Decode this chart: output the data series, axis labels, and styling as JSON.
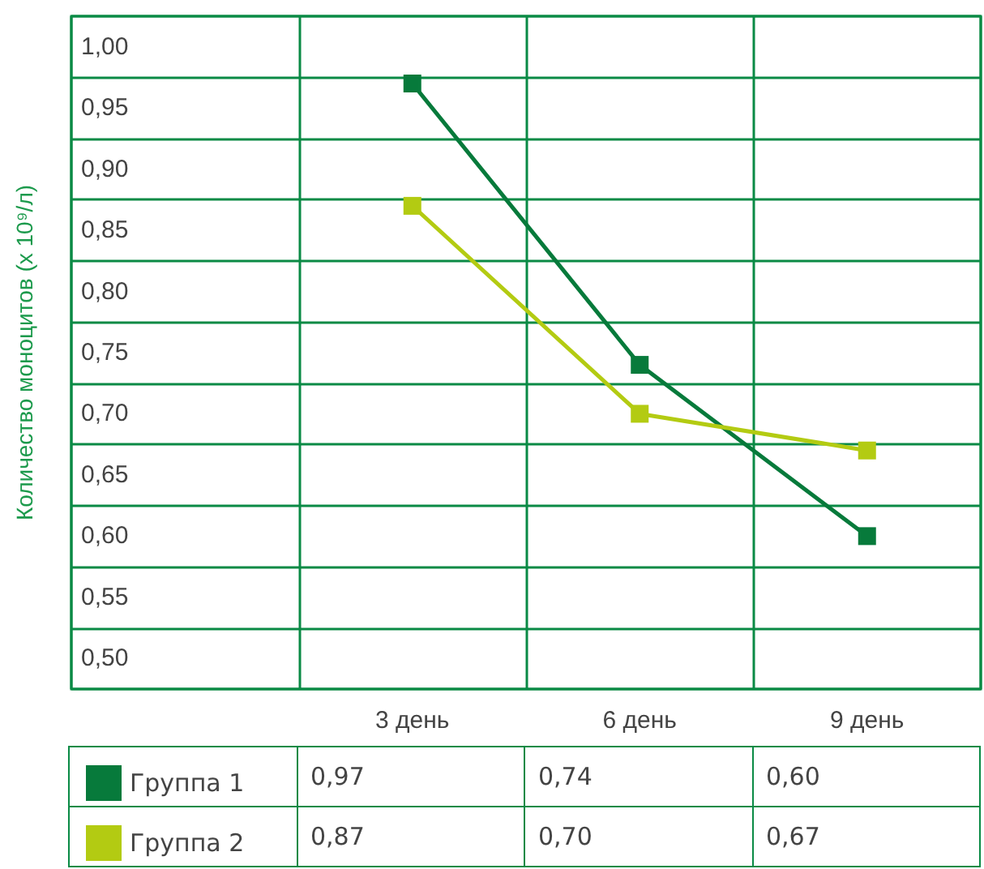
{
  "chart_data": {
    "type": "line",
    "ylabel": "Количество моноцитов (x 10⁹/л)",
    "categories": [
      "3 день",
      "6 день",
      "9 день"
    ],
    "series": [
      {
        "name": "Группа 1",
        "color": "#077a3b",
        "values": [
          0.97,
          0.74,
          0.6
        ],
        "value_labels": [
          "0,97",
          "0,74",
          "0,60"
        ]
      },
      {
        "name": "Группа 2",
        "color": "#b3cb12",
        "values": [
          0.87,
          0.7,
          0.67
        ],
        "value_labels": [
          "0,87",
          "0,70",
          "0,67"
        ]
      }
    ],
    "ylim": [
      0.475,
      1.025
    ],
    "yticks": [
      {
        "value": 0.5,
        "label": "0,50"
      },
      {
        "value": 0.55,
        "label": "0,55"
      },
      {
        "value": 0.6,
        "label": "0,60"
      },
      {
        "value": 0.65,
        "label": "0,65"
      },
      {
        "value": 0.7,
        "label": "0,70"
      },
      {
        "value": 0.75,
        "label": "0,75"
      },
      {
        "value": 0.8,
        "label": "0,80"
      },
      {
        "value": 0.85,
        "label": "0,85"
      },
      {
        "value": 0.9,
        "label": "0,90"
      },
      {
        "value": 0.95,
        "label": "0,95"
      },
      {
        "value": 1.0,
        "label": "1,00"
      }
    ],
    "grid": true,
    "legend": "bottom left",
    "marker": "square",
    "line_style": "solid"
  }
}
